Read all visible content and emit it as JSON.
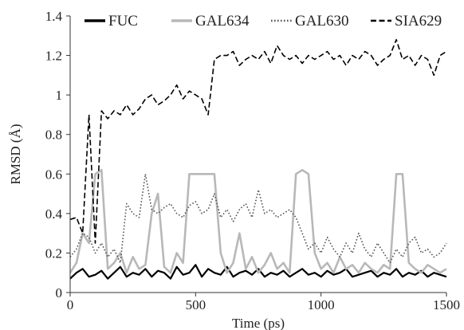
{
  "chart_data": {
    "type": "line",
    "xlabel": "Time (ps)",
    "ylabel": "RMSD (Å)",
    "xlim": [
      0,
      1500
    ],
    "ylim": [
      0,
      1.4
    ],
    "xticks": [
      0,
      500,
      1000,
      1500
    ],
    "yticks": [
      0,
      0.2,
      0.4,
      0.6,
      0.8,
      1,
      1.2,
      1.4
    ],
    "ytick_labels": [
      "0",
      "0.2",
      "0.4",
      "0.6",
      "0.8",
      "1",
      "1.2",
      "1.4"
    ],
    "grid": false,
    "legend_position": "top",
    "x": [
      0,
      25,
      50,
      75,
      100,
      125,
      150,
      175,
      200,
      225,
      250,
      275,
      300,
      325,
      350,
      375,
      400,
      425,
      450,
      475,
      500,
      525,
      550,
      575,
      600,
      625,
      650,
      675,
      700,
      725,
      750,
      775,
      800,
      825,
      850,
      875,
      900,
      925,
      950,
      975,
      1000,
      1025,
      1050,
      1075,
      1100,
      1125,
      1150,
      1175,
      1200,
      1225,
      1250,
      1275,
      1300,
      1325,
      1350,
      1375,
      1400,
      1425,
      1450,
      1475,
      1500
    ],
    "series": [
      {
        "name": "FUC",
        "color": "#000000",
        "dash": "solid",
        "values": [
          0.07,
          0.1,
          0.12,
          0.08,
          0.09,
          0.11,
          0.07,
          0.1,
          0.13,
          0.08,
          0.1,
          0.09,
          0.12,
          0.08,
          0.11,
          0.1,
          0.07,
          0.13,
          0.09,
          0.1,
          0.14,
          0.08,
          0.12,
          0.1,
          0.09,
          0.13,
          0.08,
          0.1,
          0.11,
          0.09,
          0.12,
          0.08,
          0.1,
          0.09,
          0.11,
          0.08,
          0.1,
          0.12,
          0.09,
          0.1,
          0.08,
          0.11,
          0.09,
          0.1,
          0.12,
          0.08,
          0.09,
          0.1,
          0.11,
          0.08,
          0.1,
          0.09,
          0.12,
          0.08,
          0.1,
          0.09,
          0.11,
          0.08,
          0.1,
          0.09,
          0.08
        ]
      },
      {
        "name": "GAL634",
        "color": "#b8b8b8",
        "dash": "solid",
        "values": [
          0.1,
          0.15,
          0.3,
          0.25,
          0.6,
          0.62,
          0.12,
          0.15,
          0.2,
          0.1,
          0.18,
          0.12,
          0.14,
          0.4,
          0.5,
          0.13,
          0.1,
          0.2,
          0.15,
          0.6,
          0.6,
          0.6,
          0.6,
          0.6,
          0.2,
          0.1,
          0.15,
          0.3,
          0.12,
          0.18,
          0.1,
          0.14,
          0.2,
          0.12,
          0.15,
          0.1,
          0.6,
          0.62,
          0.6,
          0.2,
          0.12,
          0.15,
          0.1,
          0.18,
          0.12,
          0.14,
          0.1,
          0.15,
          0.12,
          0.1,
          0.14,
          0.12,
          0.6,
          0.6,
          0.15,
          0.12,
          0.1,
          0.14,
          0.12,
          0.1,
          0.12
        ]
      },
      {
        "name": "GAL630",
        "color": "#555555",
        "dash": "dotted",
        "values": [
          0.18,
          0.22,
          0.3,
          0.28,
          0.2,
          0.25,
          0.18,
          0.22,
          0.15,
          0.45,
          0.4,
          0.38,
          0.6,
          0.42,
          0.4,
          0.43,
          0.45,
          0.4,
          0.38,
          0.44,
          0.46,
          0.4,
          0.42,
          0.5,
          0.38,
          0.42,
          0.36,
          0.42,
          0.45,
          0.38,
          0.52,
          0.4,
          0.42,
          0.38,
          0.4,
          0.42,
          0.38,
          0.3,
          0.22,
          0.25,
          0.2,
          0.28,
          0.22,
          0.18,
          0.25,
          0.2,
          0.3,
          0.22,
          0.18,
          0.25,
          0.2,
          0.15,
          0.22,
          0.18,
          0.25,
          0.28,
          0.2,
          0.22,
          0.18,
          0.2,
          0.25
        ]
      },
      {
        "name": "SIA629",
        "color": "#000000",
        "dash": "dashed",
        "values": [
          0.37,
          0.38,
          0.3,
          0.9,
          0.25,
          0.92,
          0.88,
          0.92,
          0.9,
          0.95,
          0.9,
          0.93,
          0.98,
          1.0,
          0.95,
          0.97,
          1.0,
          1.05,
          0.98,
          1.02,
          1.0,
          0.98,
          0.9,
          1.18,
          1.2,
          1.2,
          1.22,
          1.15,
          1.18,
          1.2,
          1.18,
          1.22,
          1.16,
          1.25,
          1.2,
          1.18,
          1.2,
          1.16,
          1.2,
          1.18,
          1.2,
          1.22,
          1.18,
          1.2,
          1.15,
          1.2,
          1.18,
          1.22,
          1.2,
          1.15,
          1.18,
          1.2,
          1.28,
          1.18,
          1.2,
          1.15,
          1.2,
          1.18,
          1.1,
          1.2,
          1.22
        ]
      }
    ]
  }
}
